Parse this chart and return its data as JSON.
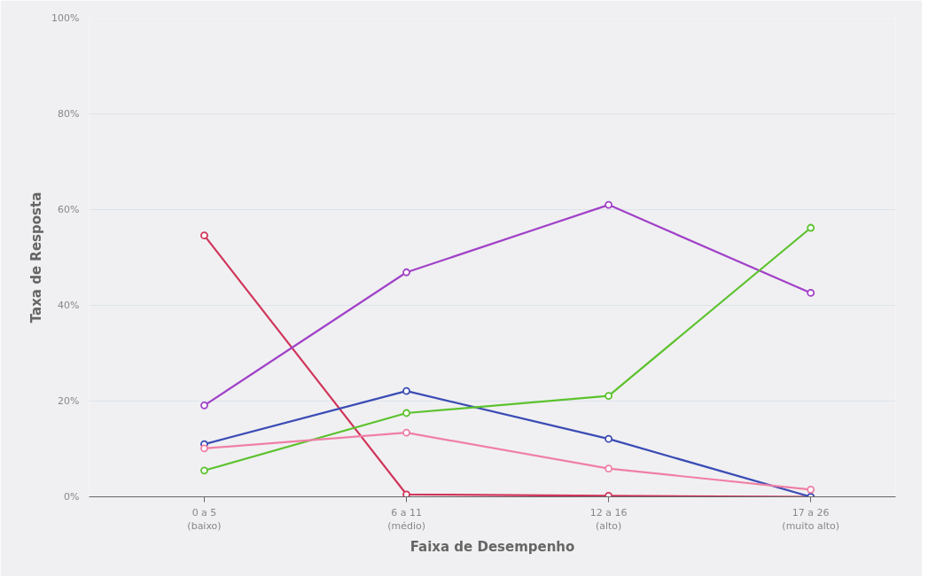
{
  "chart_data": {
    "type": "line",
    "xlabel": "Faixa de Desempenho",
    "ylabel": "Taxa de Resposta",
    "categories": [
      "0 a 5\n(baixo)",
      "6 a 11\n(médio)",
      "12 a 16\n(alto)",
      "17 a 26\n(muito alto)"
    ],
    "ylim": [
      0,
      100
    ],
    "yticks": [
      {
        "value": 0,
        "label": "0%"
      },
      {
        "value": 20,
        "label": "20%"
      },
      {
        "value": 40,
        "label": "40%"
      },
      {
        "value": 60,
        "label": "60%"
      },
      {
        "value": 80,
        "label": "80%"
      },
      {
        "value": 100,
        "label": "100%"
      }
    ],
    "grid": "y",
    "marker": "circle",
    "line_style": "solid",
    "series": [
      {
        "color": "#d0355a",
        "values": [
          54.6,
          0.5,
          0.2,
          0
        ]
      },
      {
        "color": "#a142c8",
        "values": [
          19.1,
          46.9,
          61.0,
          42.6
        ]
      },
      {
        "color": "#3b4cb5",
        "values": [
          11.0,
          22.1,
          12.1,
          0
        ]
      },
      {
        "color": "#5cc22e",
        "values": [
          5.5,
          17.5,
          21.1,
          56.2
        ]
      },
      {
        "color": "#f07fa5",
        "values": [
          10.1,
          13.4,
          5.9,
          1.5
        ]
      }
    ]
  }
}
